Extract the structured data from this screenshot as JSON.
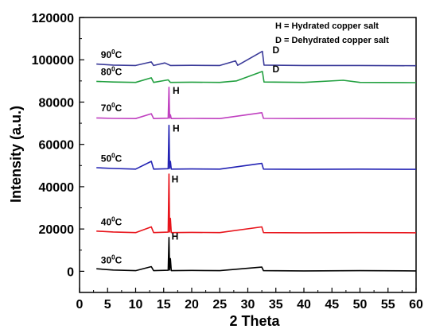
{
  "chart_data": {
    "type": "line",
    "xlabel": "2 Theta",
    "ylabel": "Intensity (a.u.)",
    "xlim": [
      0,
      60
    ],
    "ylim": [
      -10000,
      120000
    ],
    "xticks": [
      "0",
      "5",
      "10",
      "15",
      "20",
      "25",
      "30",
      "35",
      "40",
      "45",
      "50",
      "55",
      "60"
    ],
    "yticks": [
      "0",
      "20000",
      "40000",
      "60000",
      "80000",
      "100000",
      "120000"
    ],
    "grid": false,
    "annotations": [
      "H = Hydrated copper salt",
      "D = Dehydrated copper salt"
    ],
    "series": [
      {
        "name": "30⁰C",
        "label_base": "30",
        "label_sup": "0",
        "label_unit": "C",
        "color": "#000000",
        "baseline": 0,
        "peak_label": "H",
        "peak_label_at": [
          16.4,
          15000
        ],
        "points": [
          [
            3,
            1200
          ],
          [
            6,
            600
          ],
          [
            10,
            300
          ],
          [
            12.8,
            2200
          ],
          [
            13.2,
            300
          ],
          [
            15.8,
            500
          ],
          [
            15.95,
            16000
          ],
          [
            16.05,
            600
          ],
          [
            16.2,
            6000
          ],
          [
            16.35,
            300
          ],
          [
            20,
            400
          ],
          [
            25,
            300
          ],
          [
            32.5,
            2000
          ],
          [
            32.8,
            300
          ],
          [
            40,
            200
          ],
          [
            50,
            300
          ],
          [
            60,
            200
          ]
        ]
      },
      {
        "name": "40⁰C",
        "label_base": "40",
        "label_sup": "0",
        "label_unit": "C",
        "color": "#e8141b",
        "baseline": 18000,
        "peak_label": "H",
        "peak_label_at": [
          16.4,
          42000
        ],
        "points": [
          [
            3,
            19000
          ],
          [
            6,
            18600
          ],
          [
            10,
            18300
          ],
          [
            12.8,
            21000
          ],
          [
            13.2,
            18300
          ],
          [
            15.8,
            18500
          ],
          [
            15.95,
            46000
          ],
          [
            16.05,
            18600
          ],
          [
            16.2,
            25000
          ],
          [
            16.35,
            18300
          ],
          [
            20,
            18400
          ],
          [
            25,
            18300
          ],
          [
            32.5,
            21000
          ],
          [
            32.8,
            18300
          ],
          [
            40,
            18200
          ],
          [
            50,
            18300
          ],
          [
            60,
            18200
          ]
        ]
      },
      {
        "name": "50⁰C",
        "label_base": "50",
        "label_sup": "0",
        "label_unit": "C",
        "color": "#2323b4",
        "baseline": 48000,
        "peak_label": "H",
        "peak_label_at": [
          16.6,
          66000
        ],
        "points": [
          [
            3,
            49000
          ],
          [
            6,
            48600
          ],
          [
            10,
            48300
          ],
          [
            12.8,
            52000
          ],
          [
            13.2,
            48300
          ],
          [
            15.8,
            48500
          ],
          [
            15.95,
            69000
          ],
          [
            16.05,
            48600
          ],
          [
            16.2,
            52000
          ],
          [
            16.35,
            48300
          ],
          [
            20,
            48400
          ],
          [
            25,
            48300
          ],
          [
            32.5,
            51000
          ],
          [
            32.8,
            48300
          ],
          [
            40,
            48200
          ],
          [
            50,
            48300
          ],
          [
            60,
            48200
          ]
        ]
      },
      {
        "name": "70⁰C",
        "label_base": "70",
        "label_sup": "0",
        "label_unit": "C",
        "color": "#c040c0",
        "baseline": 72000,
        "peak_label": "H",
        "peak_label_at": [
          16.6,
          84000
        ],
        "points": [
          [
            3,
            72500
          ],
          [
            6,
            72300
          ],
          [
            10,
            72200
          ],
          [
            12.8,
            74500
          ],
          [
            13.2,
            72200
          ],
          [
            15.8,
            72400
          ],
          [
            15.95,
            87000
          ],
          [
            16.05,
            72400
          ],
          [
            16.2,
            74000
          ],
          [
            16.35,
            72200
          ],
          [
            20,
            72300
          ],
          [
            25,
            72200
          ],
          [
            32.5,
            75000
          ],
          [
            32.8,
            72300
          ],
          [
            40,
            72200
          ],
          [
            50,
            72300
          ],
          [
            60,
            72100
          ]
        ]
      },
      {
        "name": "80⁰C",
        "label_base": "80",
        "label_sup": "0",
        "label_unit": "C",
        "color": "#22a040",
        "baseline": 89000,
        "peak_label": "D",
        "peak_label_at": [
          34.4,
          94000
        ],
        "points": [
          [
            3,
            89800
          ],
          [
            6,
            89500
          ],
          [
            10,
            89300
          ],
          [
            12.8,
            91500
          ],
          [
            13.2,
            89300
          ],
          [
            15.8,
            90500
          ],
          [
            16.2,
            89300
          ],
          [
            20,
            89400
          ],
          [
            25,
            89300
          ],
          [
            28,
            90000
          ],
          [
            32.6,
            94500
          ],
          [
            32.9,
            89500
          ],
          [
            40,
            89300
          ],
          [
            47,
            90300
          ],
          [
            50,
            89300
          ],
          [
            60,
            89200
          ]
        ]
      },
      {
        "name": "90⁰C",
        "label_base": "90",
        "label_sup": "0",
        "label_unit": "C",
        "color": "#3a3a99",
        "baseline": 97000,
        "peak_label": "D",
        "peak_label_at": [
          34.4,
          103000
        ],
        "points": [
          [
            3,
            98000
          ],
          [
            6,
            97500
          ],
          [
            10,
            97300
          ],
          [
            12.8,
            99000
          ],
          [
            13.2,
            97300
          ],
          [
            15.2,
            98500
          ],
          [
            16.2,
            97300
          ],
          [
            20,
            97400
          ],
          [
            25,
            97300
          ],
          [
            27.8,
            99500
          ],
          [
            28.2,
            97400
          ],
          [
            32.6,
            104000
          ],
          [
            32.9,
            97500
          ],
          [
            40,
            97300
          ],
          [
            50,
            97300
          ],
          [
            60,
            97200
          ]
        ]
      }
    ]
  }
}
